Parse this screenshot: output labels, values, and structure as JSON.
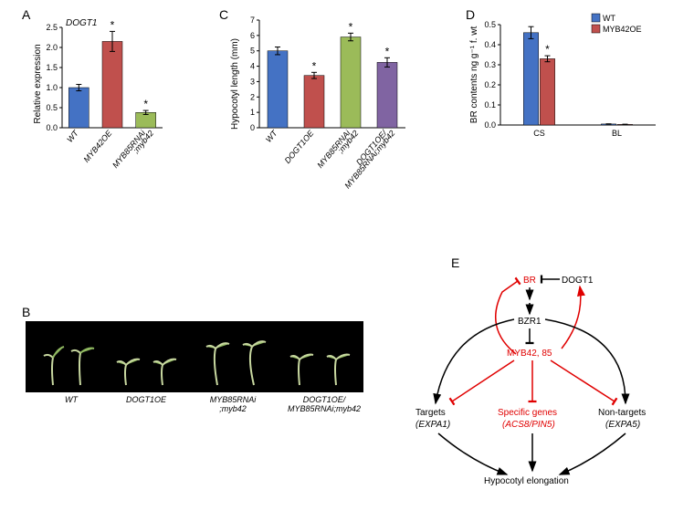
{
  "panelA": {
    "label": "A",
    "gene_label": "DOGT1",
    "ylabel": "Relative expression",
    "ylim": [
      0,
      2.5
    ],
    "ytick_step": 0.5,
    "categories": [
      "WT",
      "MYB42OE",
      "MYB85RNAi\n;myb42"
    ],
    "values": [
      1.0,
      2.15,
      0.38
    ],
    "errors": [
      0.08,
      0.25,
      0.05
    ],
    "sig": [
      "",
      "*",
      "*"
    ],
    "bar_colors": [
      "#4472c4",
      "#c0504d",
      "#9bbb59"
    ],
    "bar_width": 0.6
  },
  "panelC": {
    "label": "C",
    "ylabel": "Hypocotyl length (mm)",
    "ylim": [
      0,
      7
    ],
    "ytick_step": 1,
    "categories": [
      "WT",
      "DOGT1OE",
      "MYB85RNAi\n;myb42",
      "DOGT1OE/\nMYB85RNAi;myb42"
    ],
    "values": [
      5.0,
      3.4,
      5.9,
      4.25
    ],
    "errors": [
      0.25,
      0.2,
      0.25,
      0.3
    ],
    "sig": [
      "",
      "*",
      "*",
      "*"
    ],
    "bar_colors": [
      "#4472c4",
      "#c0504d",
      "#9bbb59",
      "#8064a2"
    ],
    "bar_width": 0.55
  },
  "panelD": {
    "label": "D",
    "ylabel": "BR contents ng g⁻¹ f. wt",
    "ylim": [
      0,
      0.5
    ],
    "ytick_step": 0.1,
    "groups": [
      "CS",
      "BL"
    ],
    "series": [
      {
        "name": "WT",
        "color": "#4472c4",
        "values": [
          0.46,
          0.005
        ]
      },
      {
        "name": "MYB42OE",
        "color": "#c0504d",
        "values": [
          0.33,
          0.003
        ]
      }
    ],
    "errors": [
      [
        0.03,
        0.001
      ],
      [
        0.015,
        0.001
      ]
    ],
    "sig_pos": {
      "group": "CS",
      "series": "MYB42OE",
      "mark": "*"
    },
    "bar_width": 0.35
  },
  "panelB": {
    "label": "B",
    "categories": [
      "WT",
      "DOGT1OE",
      "MYB85RNAi\n;myb42",
      "DOGT1OE/\nMYB85RNAi;myb42"
    ]
  },
  "panelE": {
    "label": "E",
    "nodes": {
      "BR": {
        "text": "BR",
        "color": "#e00000"
      },
      "DOGT1": {
        "text": "DOGT1",
        "color": "#000"
      },
      "BZR1": {
        "text": "BZR1",
        "color": "#000"
      },
      "MYB": {
        "text": "MYB42, 85",
        "color": "#e00000"
      },
      "targets": {
        "text1": "Targets",
        "text2": "(EXPA1)",
        "color": "#000",
        "sub_italic": true
      },
      "specific": {
        "text1": "Specific genes",
        "text2": "(ACS8/PIN5)",
        "color": "#e00000",
        "sub_italic": true
      },
      "nontargets": {
        "text1": "Non-targets",
        "text2": "(EXPA5)",
        "color": "#000",
        "sub_italic": true
      },
      "hypo": {
        "text": "Hypocotyl elongation",
        "color": "#000"
      }
    }
  }
}
